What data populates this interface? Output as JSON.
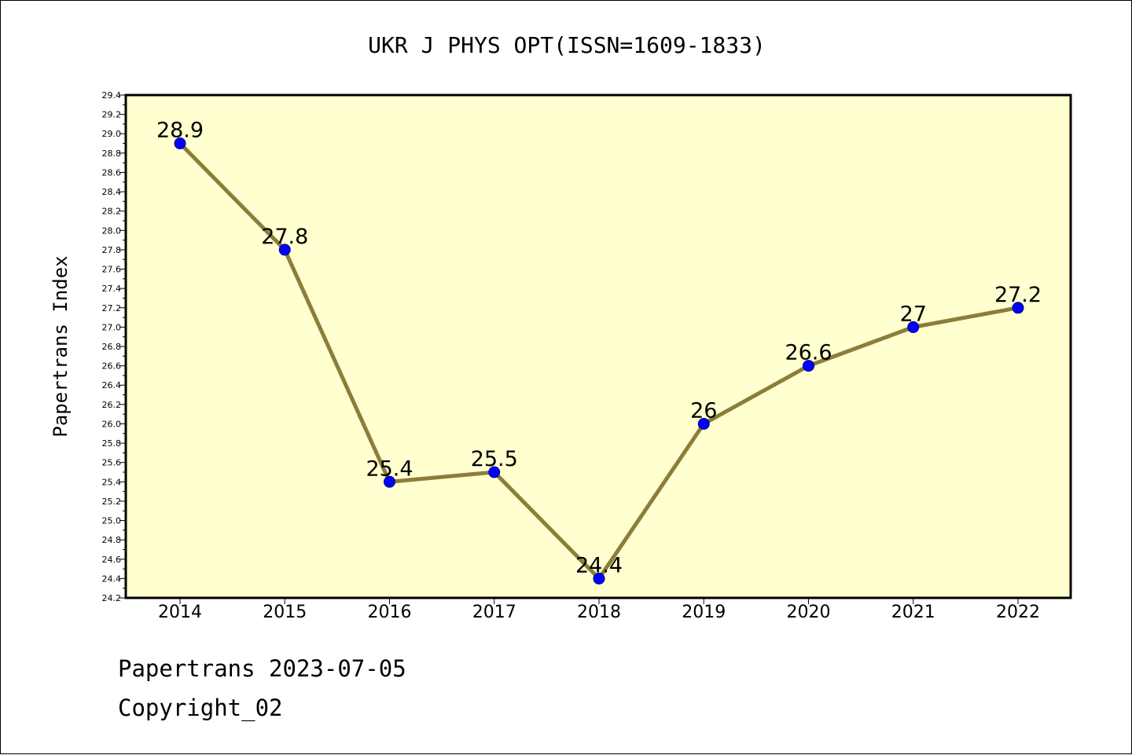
{
  "chart_data": {
    "type": "line",
    "title": "UKR J PHYS OPT(ISSN=1609-1833)",
    "xlabel": "",
    "ylabel": "Papertrans Index",
    "categories": [
      "2014",
      "2015",
      "2016",
      "2017",
      "2018",
      "2019",
      "2020",
      "2021",
      "2022"
    ],
    "series": [
      {
        "values": [
          28.9,
          27.8,
          25.4,
          25.5,
          24.4,
          26.0,
          26.6,
          27.0,
          27.2
        ],
        "labels": [
          "28.9",
          "27.8",
          "25.4",
          "25.5",
          "24.4",
          "26",
          "26.6",
          "27",
          "27.2"
        ]
      }
    ],
    "ylim": [
      24.2,
      29.4
    ],
    "yticks": [
      "24.2",
      "24.4",
      "24.6",
      "24.8",
      "25.0",
      "25.2",
      "25.4",
      "25.6",
      "25.8",
      "26.0",
      "26.2",
      "26.4",
      "26.6",
      "26.8",
      "27.0",
      "27.2",
      "27.4",
      "27.6",
      "27.8",
      "28.0",
      "28.2",
      "28.4",
      "28.6",
      "28.8",
      "29.0",
      "29.2",
      "29.4"
    ],
    "grid": false,
    "legend": "none",
    "colors": {
      "plot_background": "#FFFFD0",
      "line": "#8B7D3A",
      "marker": "#0000FF"
    }
  },
  "footer": {
    "line1": "Papertrans 2023-07-05",
    "line2": "Copyright_02"
  }
}
